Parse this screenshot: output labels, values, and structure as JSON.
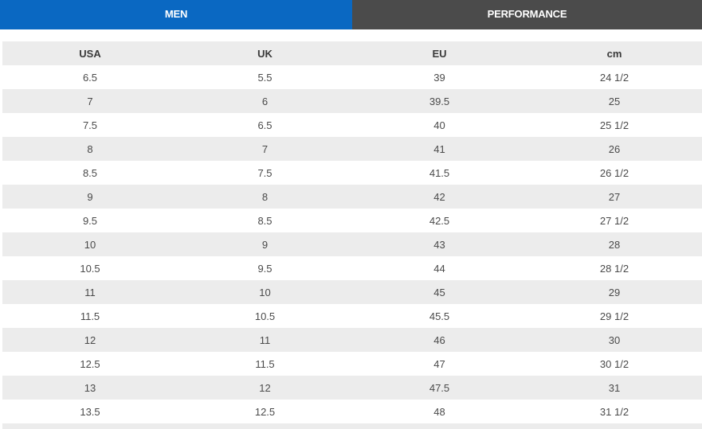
{
  "tabs": [
    {
      "label": "MEN",
      "color": "#0a68c2",
      "active": true
    },
    {
      "label": "PERFORMANCE",
      "color": "#4b4b4b",
      "active": false
    }
  ],
  "table": {
    "headers": [
      "USA",
      "UK",
      "EU",
      "cm"
    ],
    "rows": [
      [
        "6.5",
        "5.5",
        "39",
        "24 1/2"
      ],
      [
        "7",
        "6",
        "39.5",
        "25"
      ],
      [
        "7.5",
        "6.5",
        "40",
        "25 1/2"
      ],
      [
        "8",
        "7",
        "41",
        "26"
      ],
      [
        "8.5",
        "7.5",
        "41.5",
        "26 1/2"
      ],
      [
        "9",
        "8",
        "42",
        "27"
      ],
      [
        "9.5",
        "8.5",
        "42.5",
        "27 1/2"
      ],
      [
        "10",
        "9",
        "43",
        "28"
      ],
      [
        "10.5",
        "9.5",
        "44",
        "28 1/2"
      ],
      [
        "11",
        "10",
        "45",
        "29"
      ],
      [
        "11.5",
        "10.5",
        "45.5",
        "29 1/2"
      ],
      [
        "12",
        "11",
        "46",
        "30"
      ],
      [
        "12.5",
        "11.5",
        "47",
        "30 1/2"
      ],
      [
        "13",
        "12",
        "47.5",
        "31"
      ],
      [
        "13.5",
        "12.5",
        "48",
        "31 1/2"
      ]
    ]
  }
}
